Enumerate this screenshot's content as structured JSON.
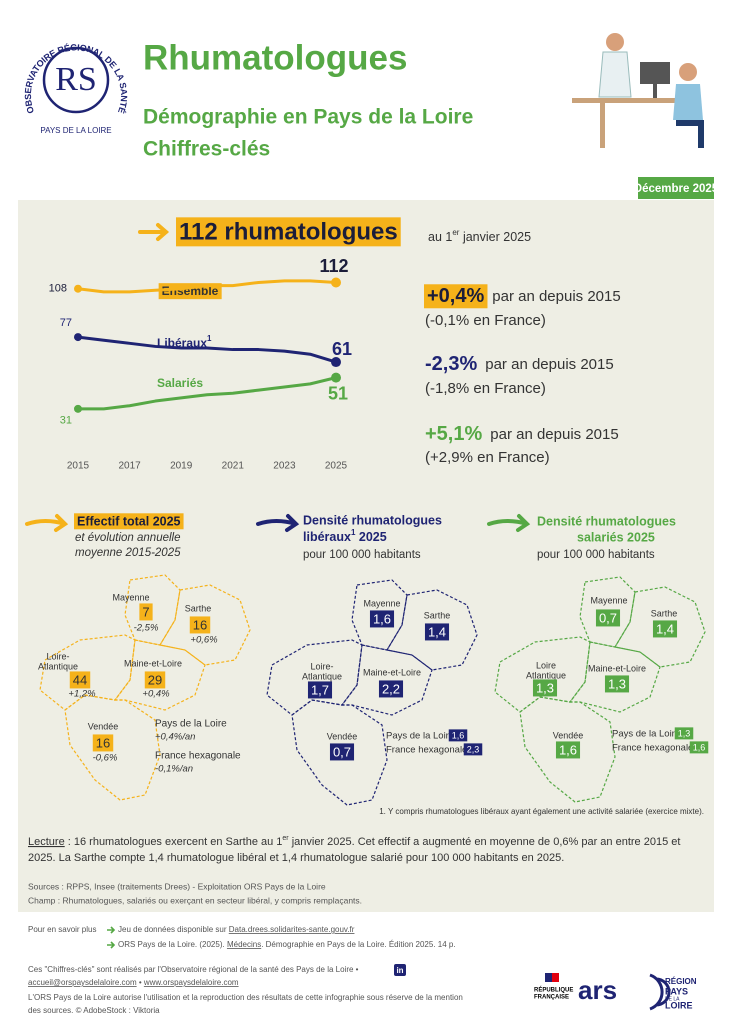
{
  "header": {
    "logo": {
      "arc_top": "OBSERVATOIRE RÉGIONAL DE LA SANTÉ",
      "monogram": "RS",
      "arc_bottom": "PAYS DE LA LOIRE"
    },
    "title": "Rhumatologues",
    "subtitle": "Démographie en Pays de la Loire",
    "subtitle2": "Chiffres-clés",
    "date": "Décembre 2025"
  },
  "headline": {
    "count": "112 rhumatologues",
    "date_pre": "au 1",
    "date_sup": "er",
    "date_post": " janvier 2025"
  },
  "chart_data": {
    "type": "line",
    "x": [
      2015,
      2016,
      2017,
      2018,
      2019,
      2020,
      2021,
      2022,
      2023,
      2024,
      2025
    ],
    "xlim": [
      2015,
      2025
    ],
    "xticks": [
      2015,
      2017,
      2019,
      2021,
      2023,
      2025
    ],
    "ylim": [
      20,
      120
    ],
    "series": [
      {
        "name": "Ensemble",
        "color": "#f5b21a",
        "values": [
          108,
          106,
          106,
          107,
          108,
          110,
          110,
          112,
          113,
          113,
          112
        ]
      },
      {
        "name": "Libéraux",
        "note": "1",
        "color": "#1f2473",
        "values": [
          77,
          75,
          73,
          71,
          70,
          70,
          69,
          69,
          68,
          66,
          61
        ]
      },
      {
        "name": "Salariés",
        "color": "#56a845",
        "values": [
          31,
          31,
          33,
          36,
          38,
          40,
          41,
          43,
          45,
          47,
          51
        ]
      }
    ]
  },
  "trends": [
    {
      "rate": "+0,4%",
      "text": "par an depuis 2015",
      "france": "(-0,1% en France)"
    },
    {
      "rate": "-2,3%",
      "text": "par an depuis 2015",
      "france": "(-1,8% en France)"
    },
    {
      "rate": "+5,1%",
      "text": "par an depuis 2015",
      "france": "(+2,9% en France)"
    }
  ],
  "maps": [
    {
      "title": "Effectif total 2025",
      "subtitle": [
        "et évolution annuelle",
        "moyenne 2015-2025"
      ],
      "departments": [
        {
          "name": [
            "Mayenne"
          ],
          "value": "7",
          "change": "-2,5%"
        },
        {
          "name": [
            "Sarthe"
          ],
          "value": "16",
          "change": "+0,6%"
        },
        {
          "name": [
            "Loire-",
            "Atlantique"
          ],
          "value": "44",
          "change": "+1,2%"
        },
        {
          "name": [
            "Maine-et-Loire"
          ],
          "value": "29",
          "change": "+0,4%"
        },
        {
          "name": [
            "Vendée"
          ],
          "value": "16",
          "change": "-0,6%"
        }
      ],
      "region": {
        "name": "Pays de la Loire",
        "value": "+0,4%/an"
      },
      "france": {
        "name": "France hexagonale",
        "value": "-0,1%/an"
      }
    },
    {
      "title": "Densité rhumatologues",
      "title2": "libéraux",
      "title_note": "1",
      "title_tail": " 2025",
      "subtitle": "pour 100 000 habitants",
      "departments": [
        {
          "name": [
            "Mayenne"
          ],
          "value": "1,6"
        },
        {
          "name": [
            "Sarthe"
          ],
          "value": "1,4"
        },
        {
          "name": [
            "Loire-",
            "Atlantique"
          ],
          "value": "1,7"
        },
        {
          "name": [
            "Maine-et-Loire"
          ],
          "value": "2,2"
        },
        {
          "name": [
            "Vendée"
          ],
          "value": "0,7"
        }
      ],
      "region": {
        "name": "Pays de la Loire",
        "value": "1,6"
      },
      "france": {
        "name": "France hexagonale",
        "value": "2,3"
      }
    },
    {
      "title": "Densité rhumatologues",
      "title2": "salariés 2025",
      "subtitle": "pour 100 000 habitants",
      "departments": [
        {
          "name": [
            "Mayenne"
          ],
          "value": "0,7"
        },
        {
          "name": [
            "Sarthe"
          ],
          "value": "1,4"
        },
        {
          "name": [
            "Loire",
            "Atlantique"
          ],
          "value": "1,3"
        },
        {
          "name": [
            "Maine-et-Loire"
          ],
          "value": "1,3"
        },
        {
          "name": [
            "Vendée"
          ],
          "value": "1,6"
        }
      ],
      "region": {
        "name": "Pays de la Loire",
        "value": "1,3"
      },
      "france": {
        "name": "France hexagonale",
        "value": "1,6"
      }
    }
  ],
  "footnote": "1. Y compris rhumatologues libéraux ayant également une activité salariée (exercice mixte).",
  "lecture": {
    "label": "Lecture",
    "text1": " : 16 rhumatologues exercent en Sarthe au 1",
    "sup": "er",
    "text2": " janvier 2025. Cet effectif a augmenté en moyenne de 0,6% par an entre 2015 et",
    "line2": "2025. La Sarthe compte 1,4 rhumatologue libéral et 1,4 rhumatologue salarié pour 100 000 habitants en 2025."
  },
  "sources": [
    "Sources : RPPS, Insee (traitements Drees) - Exploitation ORS Pays de la Loire",
    "Champ : Rhumatologues, salariés ou exerçant en secteur libéral, y compris remplaçants."
  ],
  "footer": {
    "more": "Pour en savoir plus",
    "link1": {
      "pre": "Jeu de données disponible sur ",
      "link": "Data.drees.solidarites-sante.gouv.fr"
    },
    "link2": {
      "pre": "ORS Pays de la Loire. (2025). ",
      "link": "Médecins",
      "post": ". Démographie en Pays de la Loire. Édition 2025. 14 p."
    },
    "credit": "Ces \"Chiffres-clés\" sont réalisés par l'Observatoire régional de la santé des Pays de la Loire •",
    "email": "accueil@orspaysdelaloire.com",
    "sep": " • ",
    "website": "www.orspaysdelaloire.com",
    "rights": [
      "L'ORS Pays de la Loire autorise l'utilisation et la reproduction des résultats de cette infographie sous réserve de la mention",
      "des sources. © AdobeStock : Viktoria"
    ],
    "linkedin": "in",
    "logos": {
      "republique": [
        "RÉPUBLIQUE",
        "FRANÇAISE"
      ],
      "ars": "ars",
      "region": [
        "RÉGION",
        "PAYS",
        "DE LA",
        "LOIRE"
      ]
    }
  }
}
